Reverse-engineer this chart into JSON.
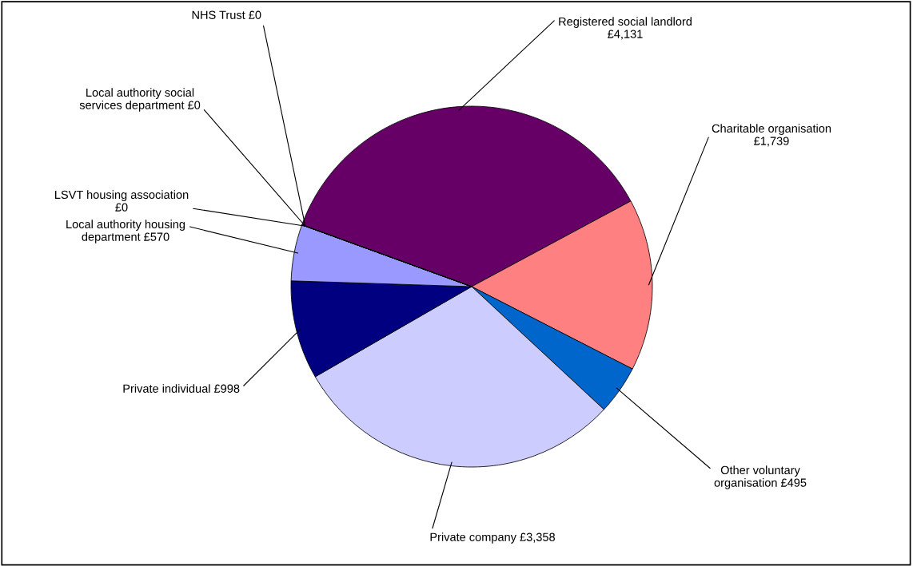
{
  "chart_data": {
    "type": "pie",
    "categories": [
      "Registered social landlord",
      "Charitable organisation",
      "Other voluntary organisation",
      "Private company",
      "Private individual",
      "Local authority housing department",
      "LSVT housing association",
      "Local authority social services department",
      "NHS Trust"
    ],
    "values": [
      4131,
      1739,
      495,
      3358,
      998,
      570,
      0,
      0,
      0
    ],
    "value_labels": [
      "£4,131",
      "£1,739",
      "£495",
      "£3,358",
      "£998",
      "£570",
      "£0",
      "£0",
      "£0"
    ],
    "colors": [
      "#660066",
      "#ff8080",
      "#0066cc",
      "#ccccff",
      "#000080",
      "#9999ff",
      "#993366",
      "#ffffcc",
      "#ccffff"
    ]
  }
}
